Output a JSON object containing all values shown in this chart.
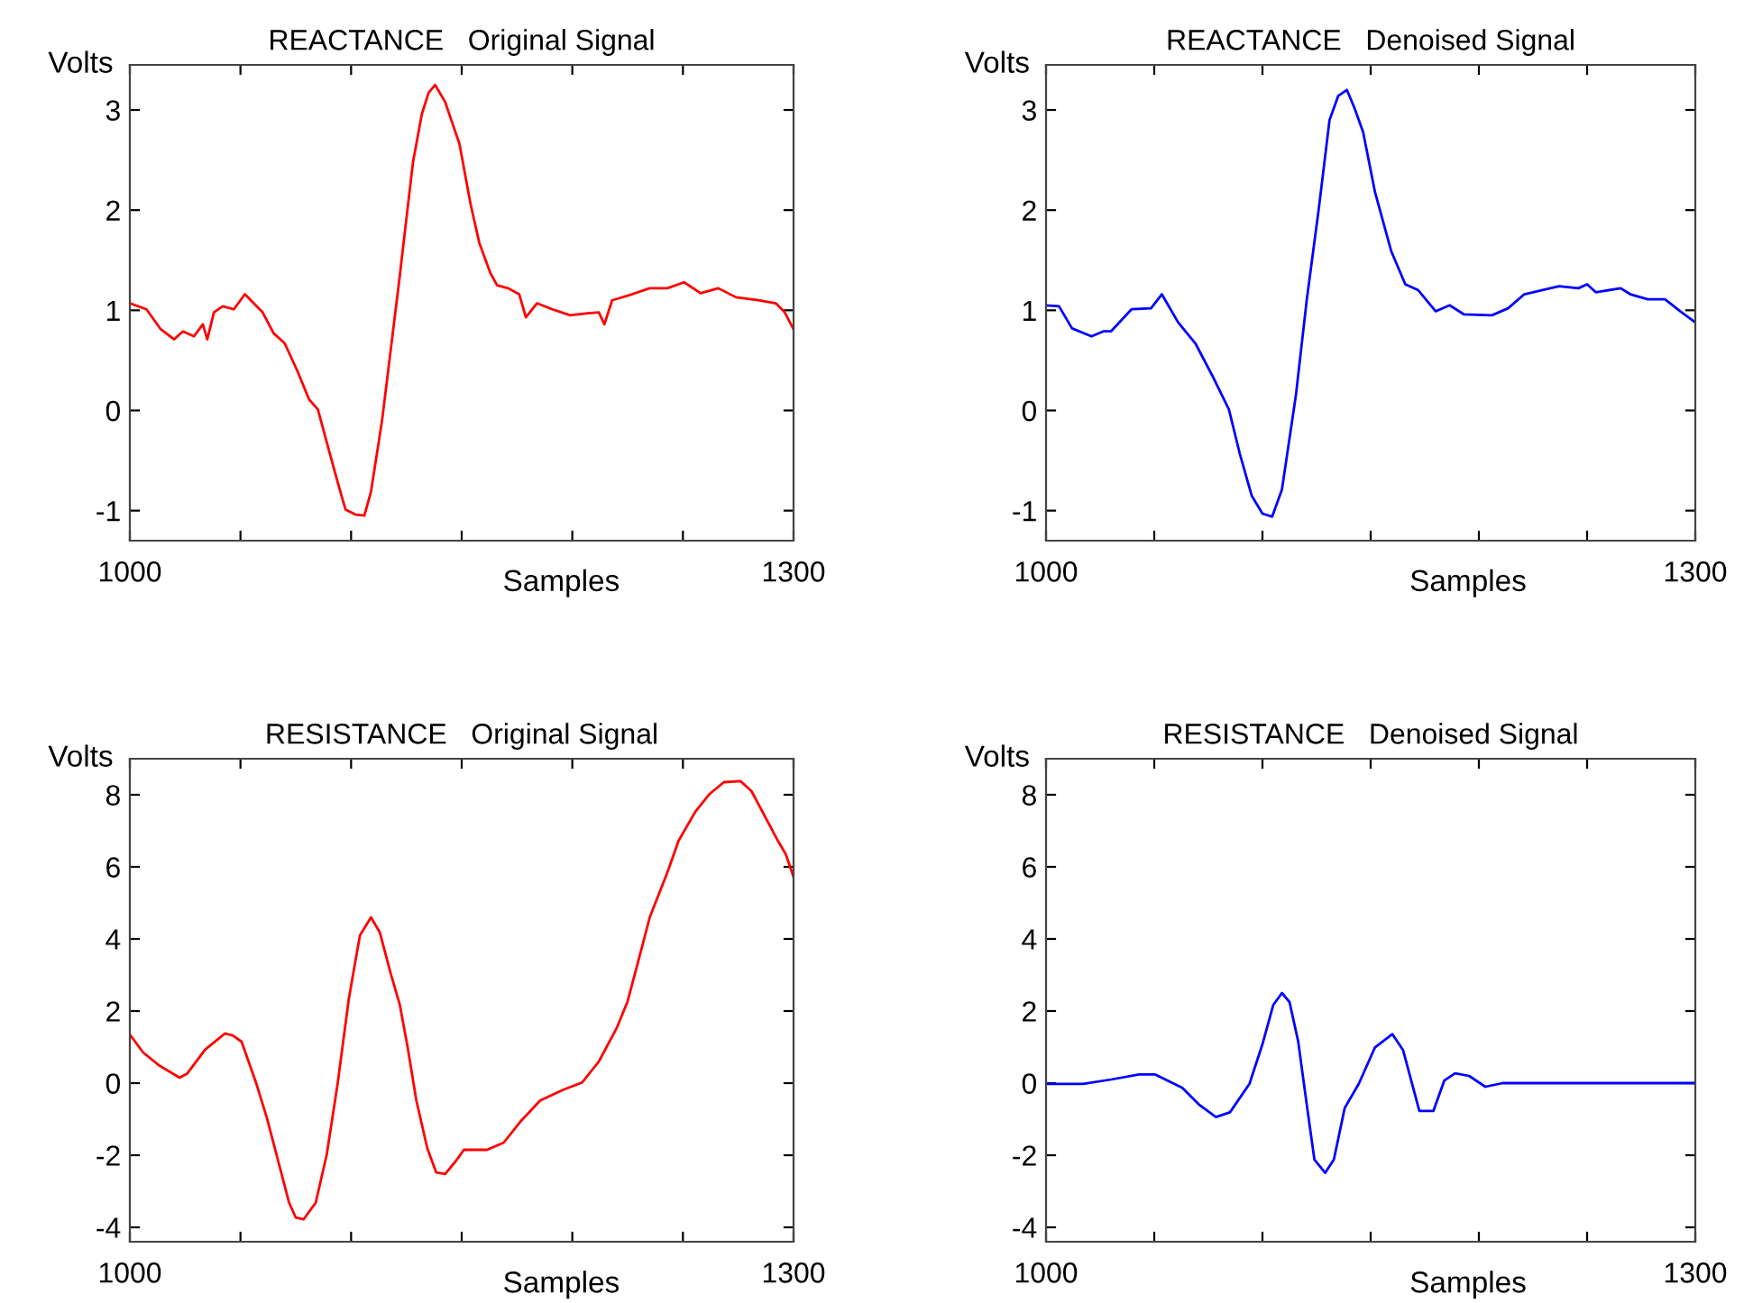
{
  "chart_data": [
    {
      "type": "line",
      "title": "REACTANCE   Original Signal",
      "xlabel": "Samples",
      "ylabel": "Volts",
      "xlim": [
        1000,
        1300
      ],
      "ylim": [
        -1.3,
        3.45
      ],
      "xticks": [
        1000,
        {
          "value": 1050,
          "label": null
        },
        {
          "value": 1100,
          "label": null
        },
        {
          "value": 1150,
          "label": null
        },
        {
          "value": 1200,
          "label": null
        },
        {
          "value": 1250,
          "label": null
        },
        1300
      ],
      "yticks": [
        -1,
        0,
        1,
        2,
        3
      ],
      "series": [
        {
          "color": "#ff0000",
          "x": [
            1000,
            1007.5,
            1014,
            1020,
            1024,
            1029,
            1033,
            1035,
            1038,
            1042,
            1047,
            1052,
            1060,
            1065,
            1070,
            1076,
            1081,
            1085,
            1090,
            1094,
            1097.5,
            1102,
            1106,
            1109,
            1114,
            1118,
            1122,
            1124.5,
            1128,
            1132,
            1135,
            1138,
            1142.5,
            1149,
            1154,
            1158,
            1163,
            1166,
            1171,
            1176,
            1179,
            1184,
            1191,
            1199,
            1207,
            1212,
            1214.5,
            1218,
            1227,
            1235,
            1243,
            1250.5,
            1258,
            1266,
            1274,
            1284,
            1292,
            1296,
            1300
          ],
          "values": [
            1.07,
            1.01,
            0.81,
            0.71,
            0.79,
            0.74,
            0.86,
            0.71,
            0.98,
            1.04,
            1.01,
            1.16,
            0.98,
            0.77,
            0.67,
            0.38,
            0.11,
            0.01,
            -0.4,
            -0.72,
            -0.99,
            -1.04,
            -1.05,
            -0.81,
            -0.1,
            0.62,
            1.34,
            1.82,
            2.48,
            2.96,
            3.17,
            3.25,
            3.08,
            2.66,
            2.06,
            1.67,
            1.37,
            1.25,
            1.22,
            1.16,
            0.93,
            1.07,
            1.01,
            0.95,
            0.97,
            0.98,
            0.86,
            1.1,
            1.16,
            1.22,
            1.22,
            1.28,
            1.17,
            1.22,
            1.13,
            1.1,
            1.07,
            0.98,
            0.81
          ]
        }
      ]
    },
    {
      "type": "line",
      "title": "REACTANCE   Denoised Signal",
      "xlabel": "Samples",
      "ylabel": "Volts",
      "xlim": [
        1000,
        1300
      ],
      "ylim": [
        -1.3,
        3.45
      ],
      "xticks": [
        1000,
        {
          "value": 1050,
          "label": null
        },
        {
          "value": 1100,
          "label": null
        },
        {
          "value": 1150,
          "label": null
        },
        {
          "value": 1200,
          "label": null
        },
        {
          "value": 1250,
          "label": null
        },
        1300
      ],
      "yticks": [
        -1,
        0,
        1,
        2,
        3
      ],
      "series": [
        {
          "color": "#0000ff",
          "x": [
            1000,
            1006,
            1012,
            1021,
            1026.5,
            1030,
            1039.5,
            1048.5,
            1053.5,
            1061,
            1069,
            1077,
            1084.5,
            1089.5,
            1095,
            1100,
            1104.5,
            1109,
            1115.5,
            1120.5,
            1126,
            1131,
            1135,
            1139,
            1142.5,
            1146.5,
            1152,
            1159.5,
            1166,
            1172,
            1180,
            1186.5,
            1193,
            1206,
            1213.5,
            1221,
            1237,
            1246,
            1250,
            1254,
            1265.5,
            1270,
            1278,
            1286,
            1293,
            1300
          ],
          "values": [
            1.05,
            1.04,
            0.82,
            0.74,
            0.79,
            0.79,
            1.01,
            1.02,
            1.16,
            0.88,
            0.67,
            0.34,
            0.01,
            -0.43,
            -0.85,
            -1.03,
            -1.06,
            -0.79,
            0.16,
            1.11,
            2.01,
            2.9,
            3.14,
            3.2,
            3.02,
            2.78,
            2.18,
            1.59,
            1.26,
            1.2,
            0.99,
            1.05,
            0.96,
            0.95,
            1.02,
            1.16,
            1.24,
            1.22,
            1.26,
            1.18,
            1.22,
            1.16,
            1.11,
            1.11,
            0.99,
            0.88
          ]
        }
      ]
    },
    {
      "type": "line",
      "title": "RESISTANCE   Original Signal",
      "xlabel": "Samples",
      "ylabel": "Volts",
      "xlim": [
        1000,
        1300
      ],
      "ylim": [
        -4.4,
        9
      ],
      "xticks": [
        1000,
        {
          "value": 1050,
          "label": null
        },
        {
          "value": 1100,
          "label": null
        },
        {
          "value": 1150,
          "label": null
        },
        {
          "value": 1200,
          "label": null
        },
        {
          "value": 1250,
          "label": null
        },
        1300
      ],
      "yticks": [
        -4,
        -2,
        0,
        2,
        4,
        6,
        8
      ],
      "series": [
        {
          "color": "#ff0000",
          "x": [
            1000,
            1006,
            1013.5,
            1022.5,
            1026,
            1034,
            1043,
            1046.5,
            1050.5,
            1057,
            1062,
            1067,
            1072,
            1075,
            1078.5,
            1084,
            1089,
            1094,
            1099,
            1104,
            1109,
            1113,
            1118,
            1122,
            1125.5,
            1129.5,
            1134.5,
            1138.5,
            1142.5,
            1147.5,
            1151,
            1161.5,
            1169,
            1176.5,
            1185.5,
            1196,
            1204.5,
            1212,
            1220,
            1225,
            1230,
            1235,
            1243,
            1248,
            1255.5,
            1262,
            1268.5,
            1276,
            1281,
            1286,
            1292.5,
            1296.5,
            1300
          ],
          "values": [
            1.35,
            0.85,
            0.48,
            0.15,
            0.27,
            0.93,
            1.38,
            1.32,
            1.15,
            0.02,
            -0.98,
            -2.15,
            -3.32,
            -3.73,
            -3.78,
            -3.32,
            -1.98,
            0.02,
            2.35,
            4.1,
            4.6,
            4.18,
            3.02,
            2.18,
            1.02,
            -0.48,
            -1.82,
            -2.48,
            -2.52,
            -2.15,
            -1.85,
            -1.85,
            -1.65,
            -1.07,
            -0.48,
            -0.18,
            0.02,
            0.6,
            1.52,
            2.27,
            3.43,
            4.6,
            5.85,
            6.72,
            7.52,
            8.02,
            8.35,
            8.38,
            8.1,
            7.52,
            6.77,
            6.35,
            5.72
          ]
        }
      ]
    },
    {
      "type": "line",
      "title": "RESISTANCE   Denoised Signal",
      "xlabel": "Samples",
      "ylabel": "Volts",
      "xlim": [
        1000,
        1300
      ],
      "ylim": [
        -4.4,
        9
      ],
      "xticks": [
        1000,
        {
          "value": 1050,
          "label": null
        },
        {
          "value": 1100,
          "label": null
        },
        {
          "value": 1150,
          "label": null
        },
        {
          "value": 1200,
          "label": null
        },
        {
          "value": 1250,
          "label": null
        },
        1300
      ],
      "yticks": [
        -4,
        -2,
        0,
        2,
        4,
        6,
        8
      ],
      "series": [
        {
          "color": "#0000ff",
          "x": [
            1000,
            1017,
            1030,
            1043,
            1050.5,
            1063,
            1071,
            1078.5,
            1085,
            1094,
            1100,
            1105,
            1109,
            1112.5,
            1116.5,
            1120.5,
            1124,
            1129,
            1133,
            1138,
            1144.5,
            1152,
            1160,
            1165,
            1172.5,
            1179,
            1184,
            1189,
            1195.5,
            1203,
            1211,
            1300
          ],
          "values": [
            -0.02,
            -0.02,
            0.1,
            0.24,
            0.24,
            -0.13,
            -0.61,
            -0.94,
            -0.81,
            -0.02,
            1.08,
            2.17,
            2.5,
            2.25,
            1.16,
            -0.61,
            -2.12,
            -2.49,
            -2.12,
            -0.69,
            -0.02,
            0.99,
            1.36,
            0.91,
            -0.77,
            -0.77,
            0.07,
            0.27,
            0.2,
            -0.1,
            0.0,
            0.0
          ]
        }
      ]
    }
  ]
}
